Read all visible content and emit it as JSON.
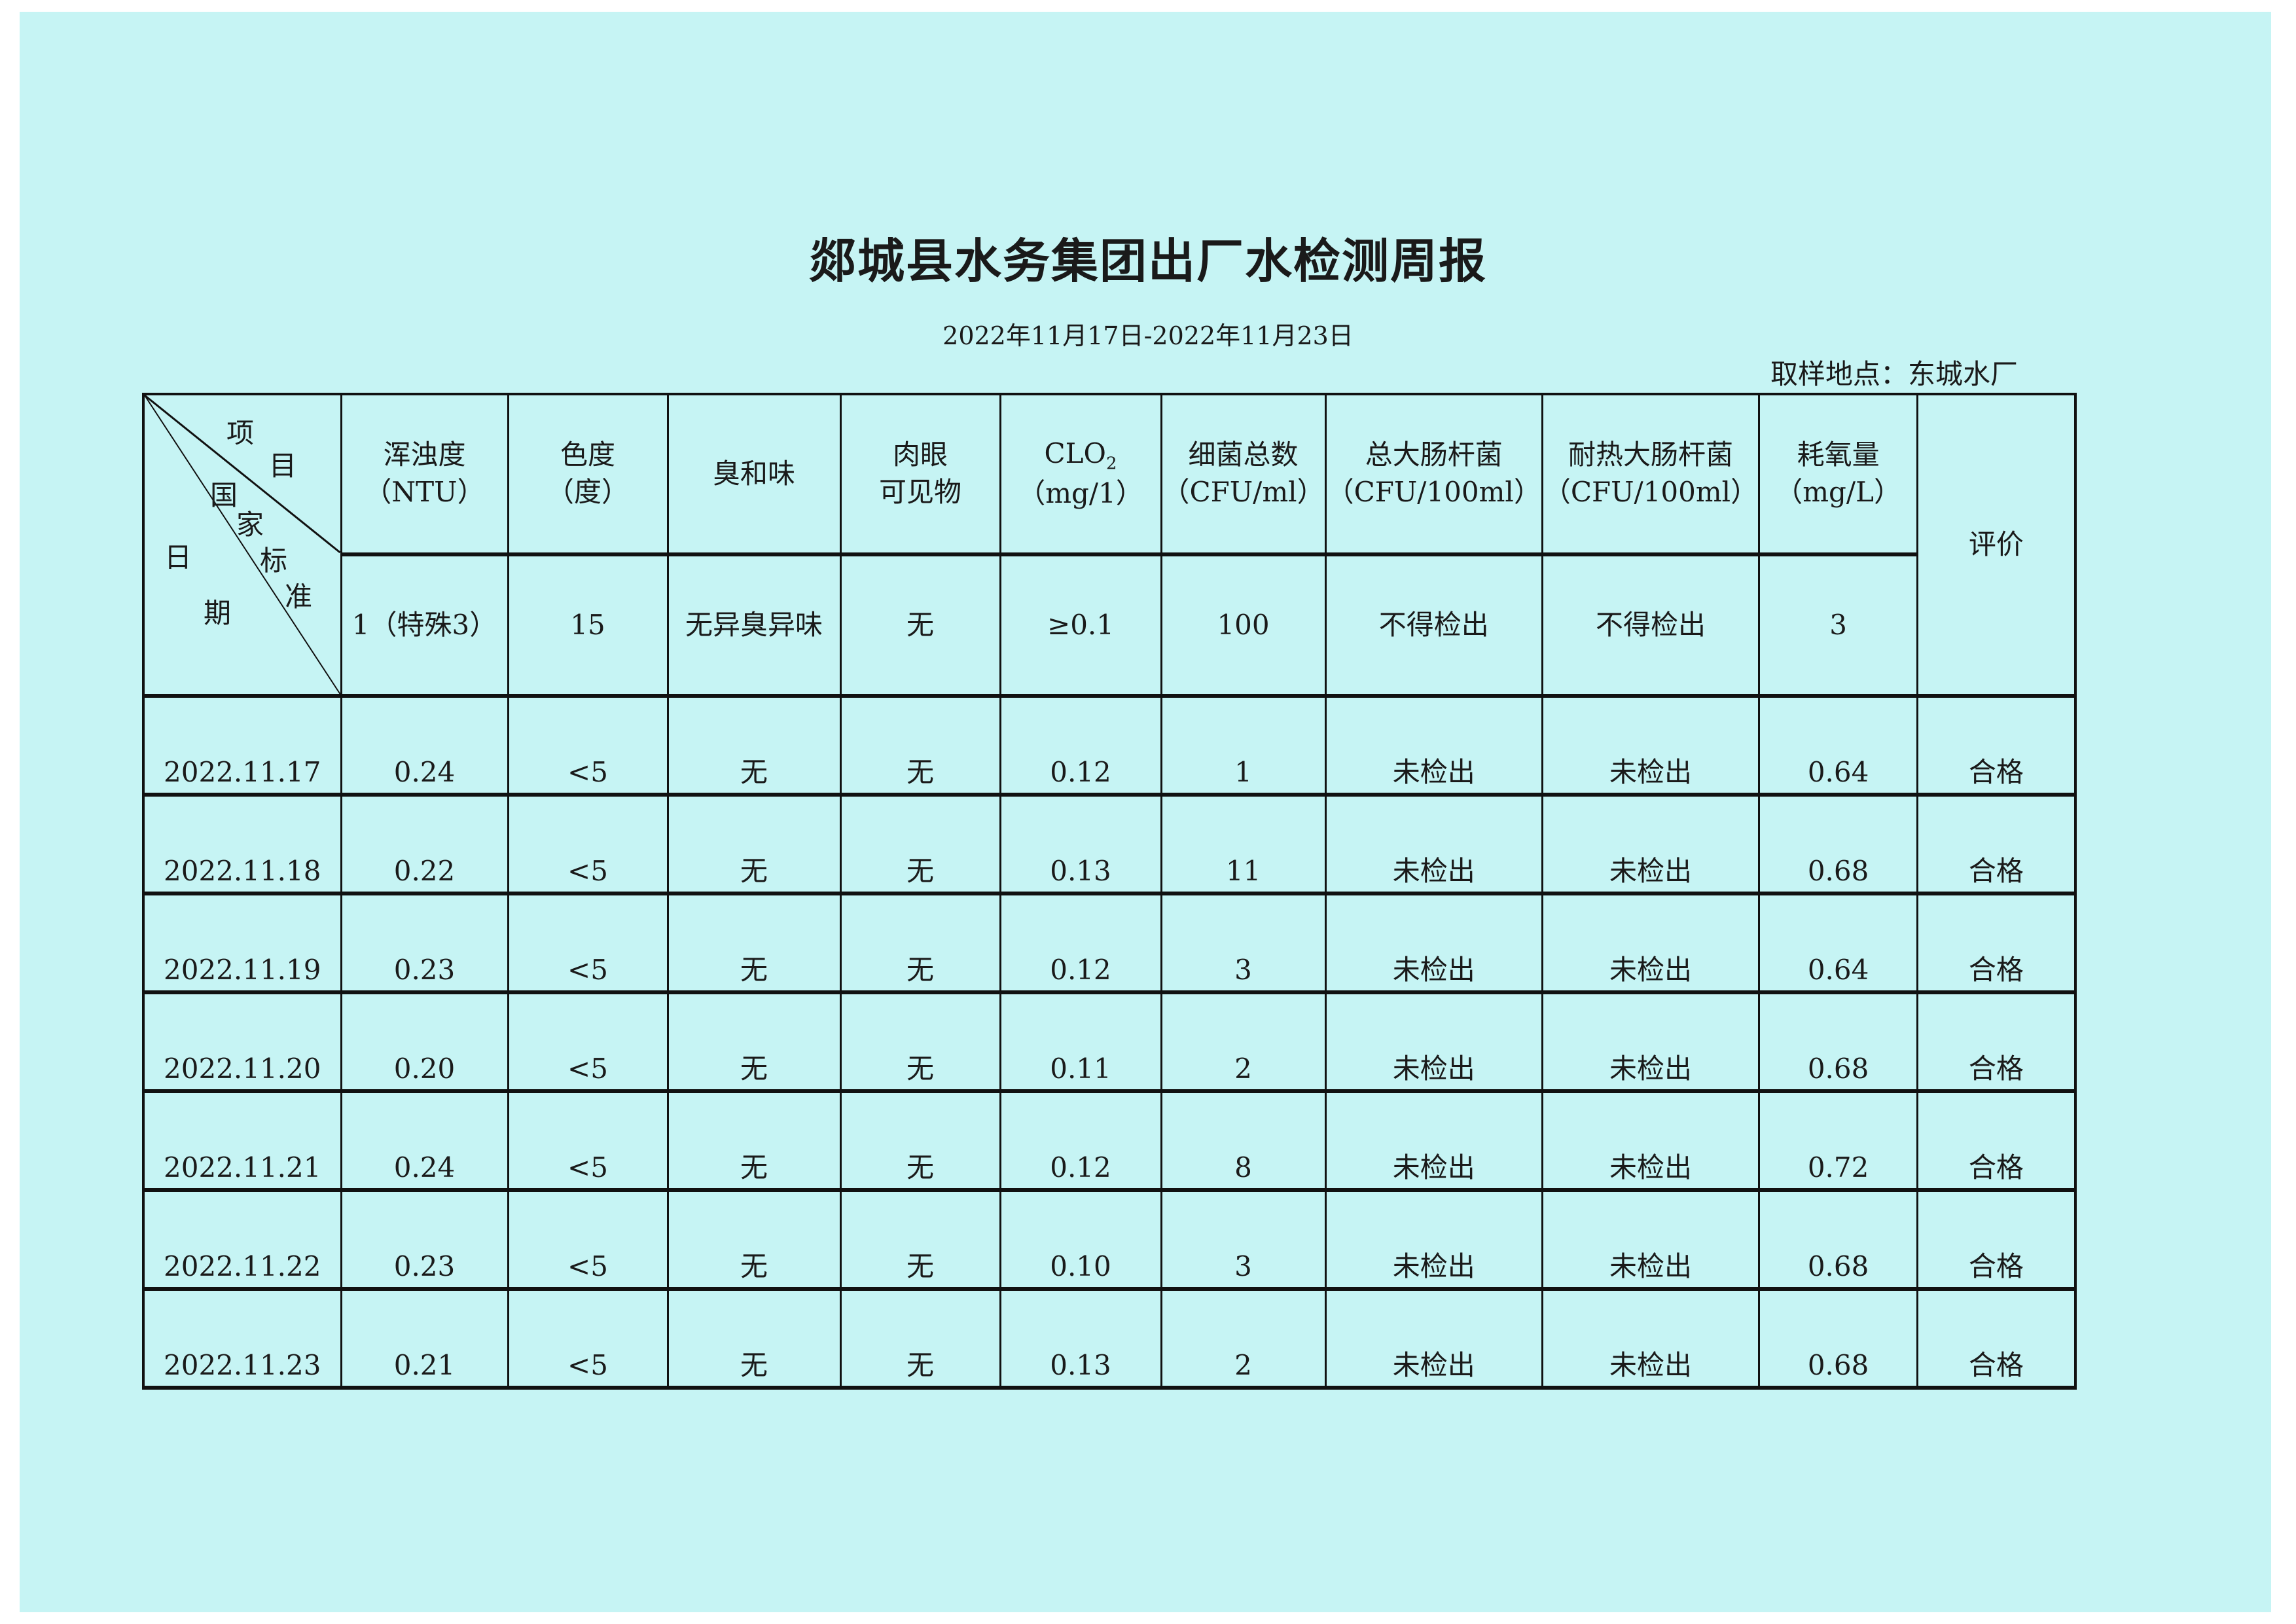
{
  "title": "郯城县水务集团出厂水检测周报",
  "date_range": "2022年11月17日-2022年11月23日",
  "location": "取样地点：东城水厂",
  "corner": {
    "item": [
      "项",
      "目"
    ],
    "standard": [
      "国",
      "家",
      "标",
      "准"
    ],
    "date": [
      "日",
      "期"
    ]
  },
  "columns": [
    {
      "name": "浑浊度",
      "unit": "（NTU）",
      "standard": "1（特殊3）"
    },
    {
      "name": "色度",
      "unit": "（度）",
      "standard": "15"
    },
    {
      "name": "臭和味",
      "unit": "",
      "standard": "无异臭异味"
    },
    {
      "name": "肉眼",
      "unit": "可见物",
      "standard": "无"
    },
    {
      "name": "CLO",
      "sub": "2",
      "unit": "（mg/1）",
      "standard": "≥0.1"
    },
    {
      "name": "细菌总数",
      "unit": "（CFU/ml）",
      "standard": "100"
    },
    {
      "name": "总大肠杆菌",
      "unit": "（CFU/100ml）",
      "standard": "不得检出"
    },
    {
      "name": "耐热大肠杆菌",
      "unit": "（CFU/100ml）",
      "standard": "不得检出"
    },
    {
      "name": "耗氧量",
      "unit": "（mg/L）",
      "standard": "3"
    }
  ],
  "evaluation_header": "评价",
  "rows": [
    [
      "2022.11.17",
      "0.24",
      "<5",
      "无",
      "无",
      "0.12",
      "1",
      "未检出",
      "未检出",
      "0.64",
      "合格"
    ],
    [
      "2022.11.18",
      "0.22",
      "<5",
      "无",
      "无",
      "0.13",
      "11",
      "未检出",
      "未检出",
      "0.68",
      "合格"
    ],
    [
      "2022.11.19",
      "0.23",
      "<5",
      "无",
      "无",
      "0.12",
      "3",
      "未检出",
      "未检出",
      "0.64",
      "合格"
    ],
    [
      "2022.11.20",
      "0.20",
      "<5",
      "无",
      "无",
      "0.11",
      "2",
      "未检出",
      "未检出",
      "0.68",
      "合格"
    ],
    [
      "2022.11.21",
      "0.24",
      "<5",
      "无",
      "无",
      "0.12",
      "8",
      "未检出",
      "未检出",
      "0.72",
      "合格"
    ],
    [
      "2022.11.22",
      "0.23",
      "<5",
      "无",
      "无",
      "0.10",
      "3",
      "未检出",
      "未检出",
      "0.68",
      "合格"
    ],
    [
      "2022.11.23",
      "0.21",
      "<5",
      "无",
      "无",
      "0.13",
      "2",
      "未检出",
      "未检出",
      "0.68",
      "合格"
    ]
  ],
  "colors": {
    "background": "#c6f4f4",
    "lines": "#111111"
  }
}
